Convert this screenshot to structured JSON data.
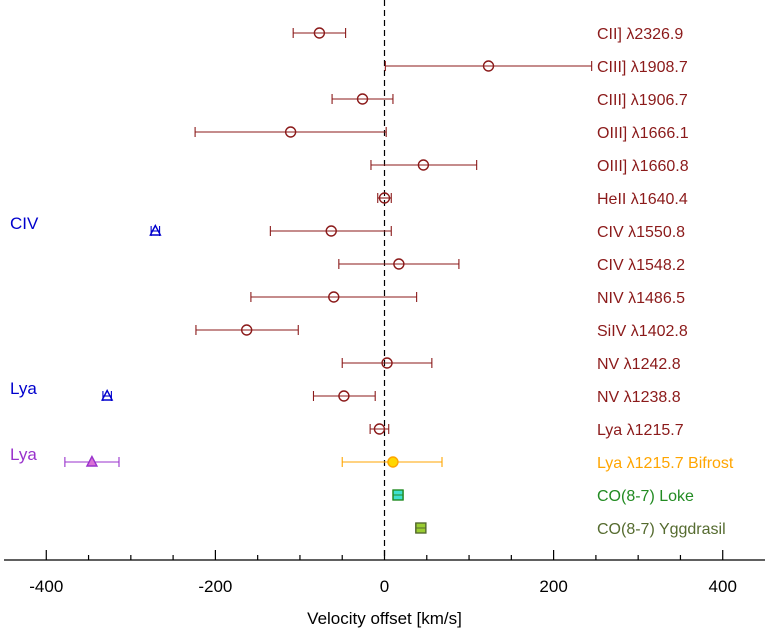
{
  "chart_data": {
    "type": "scatter",
    "xlabel": "Velocity offset [km/s]",
    "xlim": [
      -450,
      450
    ],
    "xticks": [
      -400,
      -200,
      0,
      200,
      400
    ],
    "xtick_labels": [
      "-400",
      "-200",
      "0",
      "200",
      "400"
    ],
    "reference_line": {
      "x": 0,
      "style": "dashed"
    },
    "rows": [
      {
        "label": "CII] λ2326.9",
        "color": "#8b1a1a",
        "marker": "circle",
        "x": -77,
        "xmin": -108,
        "xmax": -46
      },
      {
        "label": "CIII] λ1908.7",
        "color": "#8b1a1a",
        "marker": "circle",
        "x": 123,
        "xmin": 1,
        "xmax": 245
      },
      {
        "label": "CIII] λ1906.7",
        "color": "#8b1a1a",
        "marker": "circle",
        "x": -26,
        "xmin": -62,
        "xmax": 10
      },
      {
        "label": "OIII] λ1666.1",
        "color": "#8b1a1a",
        "marker": "circle",
        "x": -111,
        "xmin": -224,
        "xmax": 2
      },
      {
        "label": "OIII] λ1660.8",
        "color": "#8b1a1a",
        "marker": "circle",
        "x": 46,
        "xmin": -16,
        "xmax": 109
      },
      {
        "label": "HeII λ1640.4",
        "color": "#8b1a1a",
        "marker": "circle",
        "x": 0,
        "xmin": -8,
        "xmax": 8
      },
      {
        "label": "CIV λ1550.8",
        "color": "#8b1a1a",
        "marker": "circle",
        "x": -63,
        "xmin": -135,
        "xmax": 8
      },
      {
        "label": "CIV λ1548.2",
        "color": "#8b1a1a",
        "marker": "circle",
        "x": 17,
        "xmin": -54,
        "xmax": 88
      },
      {
        "label": "NIV λ1486.5",
        "color": "#8b1a1a",
        "marker": "circle",
        "x": -60,
        "xmin": -158,
        "xmax": 38
      },
      {
        "label": "SiIV λ1402.8",
        "color": "#8b1a1a",
        "marker": "circle",
        "x": -163,
        "xmin": -223,
        "xmax": -102
      },
      {
        "label": "NV λ1242.8",
        "color": "#8b1a1a",
        "marker": "circle",
        "x": 3,
        "xmin": -50,
        "xmax": 56
      },
      {
        "label": "NV λ1238.8",
        "color": "#8b1a1a",
        "marker": "circle",
        "x": -48,
        "xmin": -84,
        "xmax": -11
      },
      {
        "label": "Lya λ1215.7",
        "color": "#8b1a1a",
        "marker": "circle",
        "x": -6,
        "xmin": -17,
        "xmax": 5
      },
      {
        "label": "Lya λ1215.7 Bifrost",
        "color": "#ffa500",
        "marker": "filled-circle",
        "fill": "#ffd700",
        "x": 10,
        "xmin": -50,
        "xmax": 68
      },
      {
        "label": "CO(8-7) Loke",
        "color": "#228b22",
        "marker": "filled-square",
        "fill": "#40e0d0",
        "x": 16,
        "xmin": 10,
        "xmax": 22
      },
      {
        "label": "CO(8-7) Yggdrasil",
        "color": "#556b2f",
        "marker": "filled-square",
        "fill": "#9acd32",
        "x": 43,
        "xmin": 37,
        "xmax": 49
      }
    ],
    "extra_series": [
      {
        "label": "CIV",
        "color": "#0000cd",
        "marker": "triangle",
        "row": 6,
        "x": -271,
        "xmin": -276,
        "xmax": -266
      },
      {
        "label": "Lya",
        "color": "#0000cd",
        "marker": "triangle",
        "row": 11,
        "x": -328,
        "xmin": -333,
        "xmax": -323
      },
      {
        "label": "Lya",
        "color": "#9932cc",
        "marker": "filled-triangle",
        "fill": "#da70d6",
        "row": 13,
        "x": -346,
        "xmin": -378,
        "xmax": -314
      }
    ]
  }
}
